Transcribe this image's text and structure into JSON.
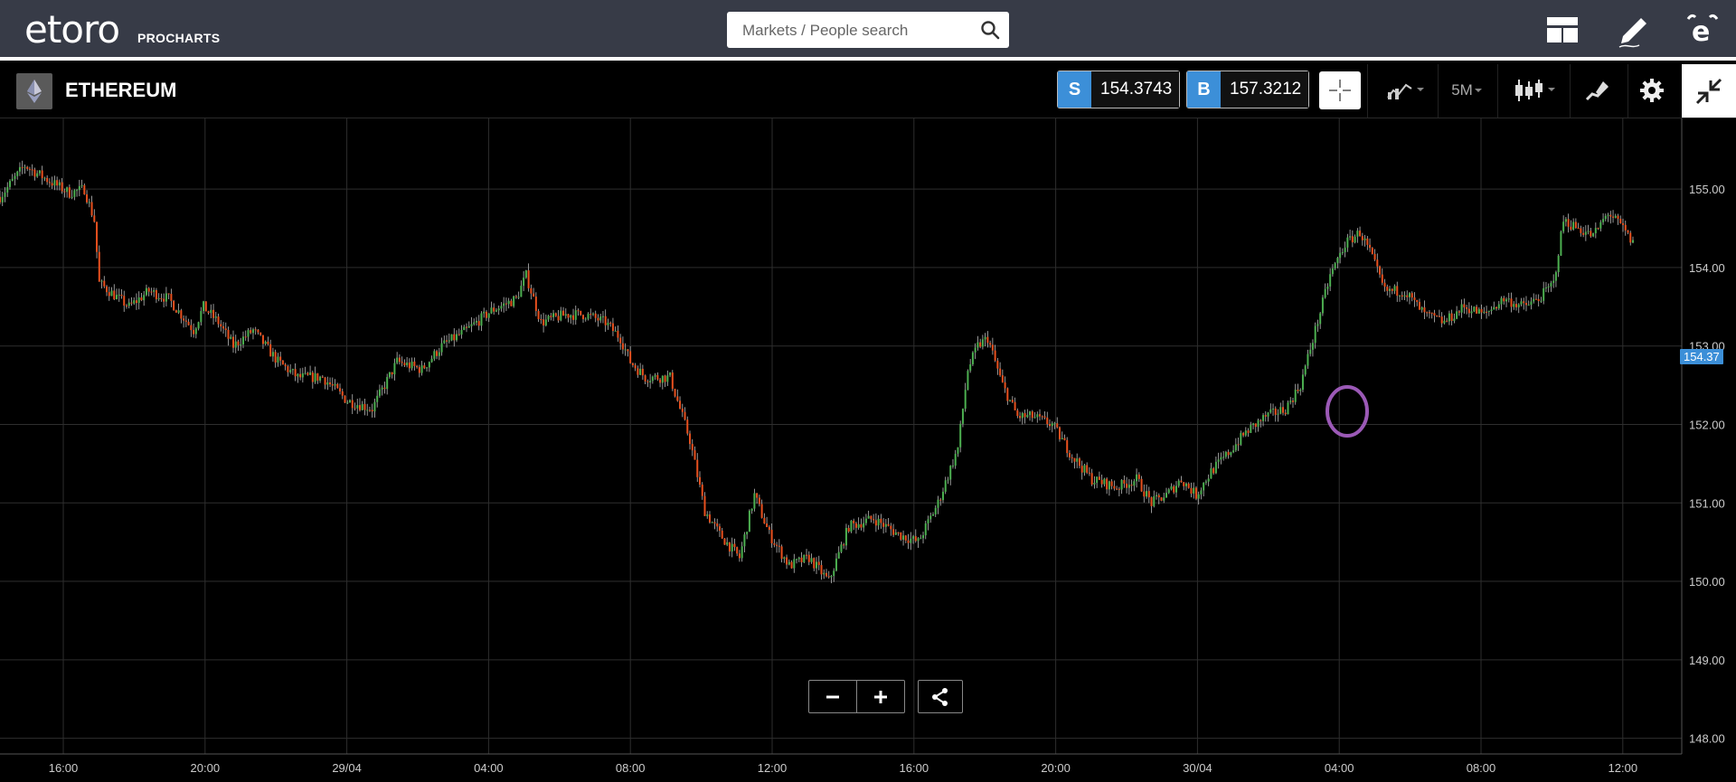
{
  "header": {
    "logo_text": "etoro",
    "logo_sub": "PROCHARTS",
    "search_placeholder": "Markets / People search",
    "icons": [
      "layout-icon",
      "edit-pencil-icon",
      "etoro-app-icon"
    ]
  },
  "toolbar": {
    "instrument": "ETHEREUM",
    "sell_letter": "S",
    "sell_price": "154.3743",
    "buy_letter": "B",
    "buy_price": "157.3212",
    "timeframe": "5M",
    "icons": [
      "crosshair-icon",
      "indicators-icon",
      "candlestick-icon",
      "drawing-tools-icon",
      "settings-gear-icon",
      "collapse-fullscreen-icon"
    ]
  },
  "chart_data": {
    "type": "candlestick",
    "instrument": "ETHEREUM",
    "y_ticks": [
      "148.00",
      "149.00",
      "150.00",
      "151.00",
      "152.00",
      "153.00",
      "154.00",
      "155.00"
    ],
    "y_range": [
      147.8,
      155.9
    ],
    "x_ticks": [
      "16:00",
      "20:00",
      "29/04",
      "04:00",
      "08:00",
      "12:00",
      "16:00",
      "20:00",
      "30/04",
      "04:00",
      "08:00",
      "12:00"
    ],
    "current_price_label": "154.37",
    "current_price": 154.37,
    "colors": {
      "up": "#4caf50",
      "down": "#e8501e",
      "grid": "#2e2e2e",
      "price_tag": "#3c8fd8",
      "highlight_circle": "#9b59b6"
    },
    "close_path": [
      [
        0,
        154.9
      ],
      [
        10,
        155.3
      ],
      [
        20,
        155.1
      ],
      [
        28,
        154.95
      ],
      [
        34,
        155.0
      ],
      [
        38,
        154.6
      ],
      [
        40,
        153.8
      ],
      [
        44,
        153.7
      ],
      [
        52,
        153.5
      ],
      [
        60,
        153.7
      ],
      [
        68,
        153.6
      ],
      [
        78,
        153.2
      ],
      [
        82,
        153.5
      ],
      [
        88,
        153.3
      ],
      [
        94,
        153.0
      ],
      [
        102,
        153.2
      ],
      [
        112,
        152.8
      ],
      [
        120,
        152.6
      ],
      [
        130,
        152.6
      ],
      [
        140,
        152.3
      ],
      [
        150,
        152.2
      ],
      [
        160,
        152.8
      ],
      [
        170,
        152.7
      ],
      [
        178,
        153.0
      ],
      [
        188,
        153.2
      ],
      [
        198,
        153.45
      ],
      [
        208,
        153.6
      ],
      [
        212,
        153.9
      ],
      [
        218,
        153.3
      ],
      [
        228,
        153.4
      ],
      [
        236,
        153.4
      ],
      [
        244,
        153.3
      ],
      [
        250,
        153.1
      ],
      [
        254,
        152.8
      ],
      [
        260,
        152.6
      ],
      [
        270,
        152.6
      ],
      [
        278,
        151.8
      ],
      [
        284,
        150.9
      ],
      [
        290,
        150.6
      ],
      [
        298,
        150.3
      ],
      [
        304,
        151.1
      ],
      [
        310,
        150.6
      ],
      [
        318,
        150.2
      ],
      [
        326,
        150.3
      ],
      [
        334,
        150.0
      ],
      [
        342,
        150.7
      ],
      [
        352,
        150.8
      ],
      [
        362,
        150.6
      ],
      [
        370,
        150.5
      ],
      [
        378,
        151.0
      ],
      [
        386,
        151.7
      ],
      [
        390,
        152.7
      ],
      [
        394,
        153.0
      ],
      [
        398,
        153.1
      ],
      [
        404,
        152.5
      ],
      [
        410,
        152.1
      ],
      [
        416,
        152.1
      ],
      [
        424,
        152.0
      ],
      [
        432,
        151.6
      ],
      [
        440,
        151.3
      ],
      [
        450,
        151.2
      ],
      [
        458,
        151.3
      ],
      [
        464,
        151.0
      ],
      [
        470,
        151.1
      ],
      [
        476,
        151.3
      ],
      [
        482,
        151.1
      ],
      [
        488,
        151.4
      ],
      [
        494,
        151.6
      ],
      [
        502,
        151.9
      ],
      [
        510,
        152.1
      ],
      [
        518,
        152.2
      ],
      [
        524,
        152.5
      ],
      [
        530,
        153.2
      ],
      [
        536,
        153.9
      ],
      [
        542,
        154.3
      ],
      [
        548,
        154.45
      ],
      [
        552,
        154.2
      ],
      [
        558,
        153.7
      ],
      [
        566,
        153.7
      ],
      [
        574,
        153.4
      ],
      [
        582,
        153.3
      ],
      [
        590,
        153.5
      ],
      [
        598,
        153.4
      ],
      [
        606,
        153.6
      ],
      [
        614,
        153.5
      ],
      [
        620,
        153.6
      ],
      [
        626,
        153.8
      ],
      [
        630,
        154.6
      ],
      [
        636,
        154.5
      ],
      [
        642,
        154.4
      ],
      [
        648,
        154.7
      ],
      [
        654,
        154.5
      ],
      [
        658,
        154.3
      ]
    ]
  },
  "controls": {
    "zoom_out": "−",
    "zoom_in": "+",
    "share": "share-icon"
  }
}
